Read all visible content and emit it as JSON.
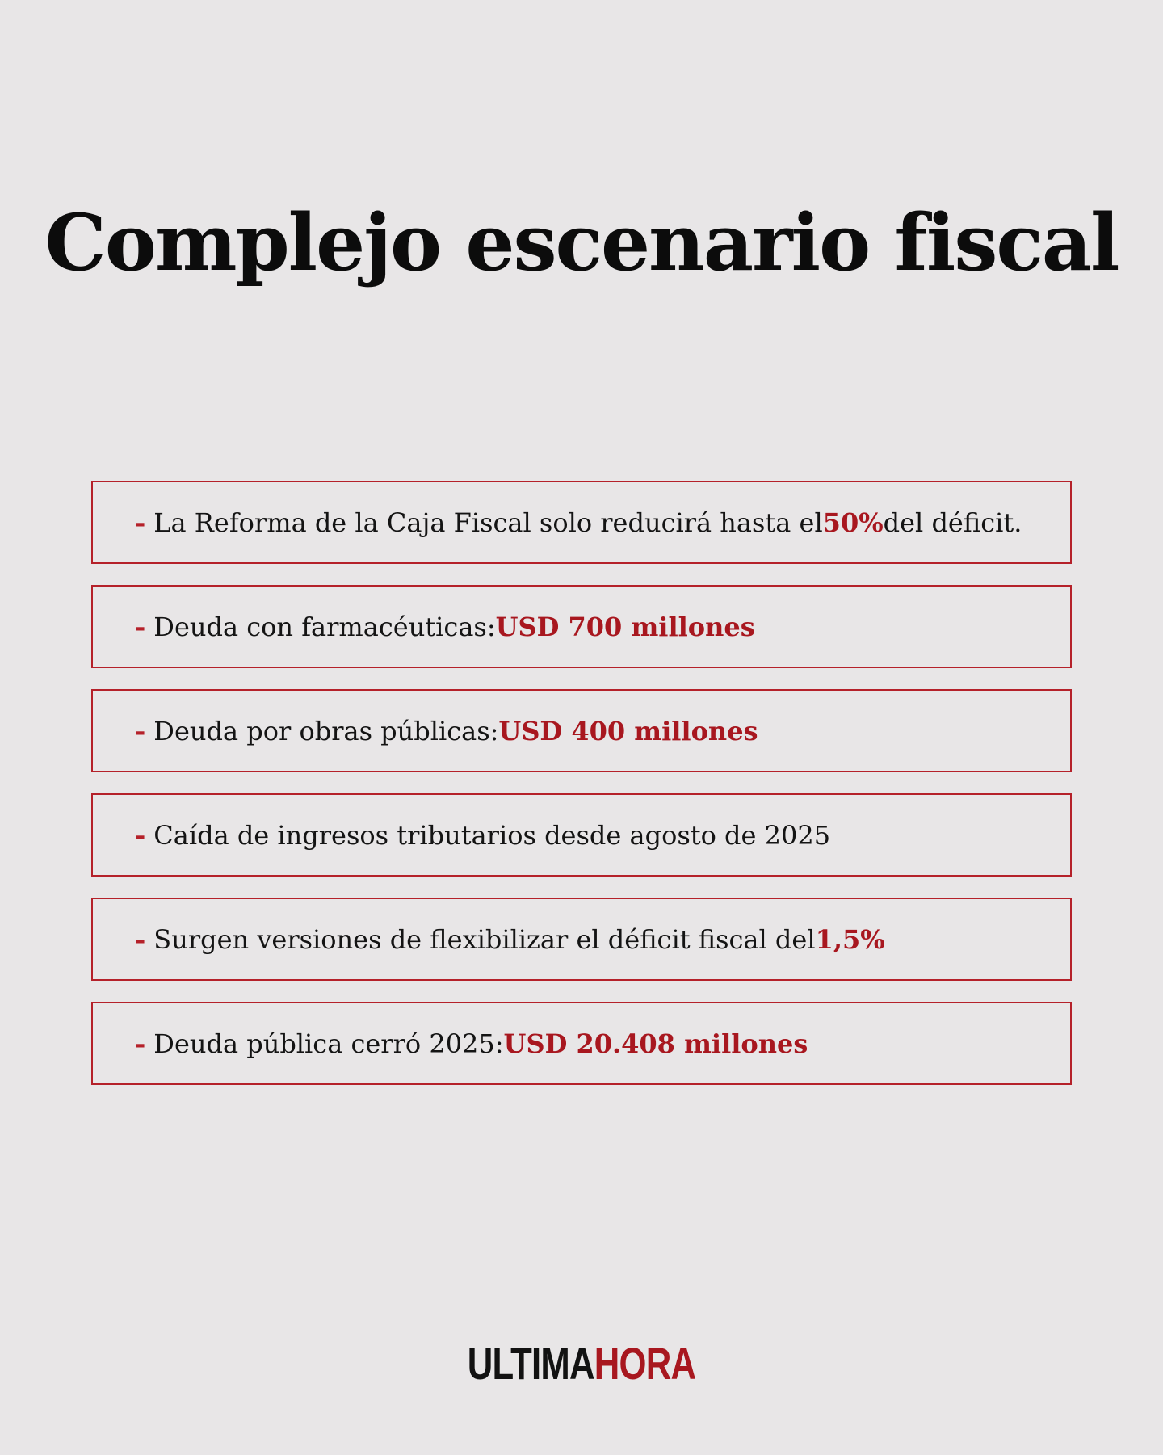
{
  "title": "Complejo escenario fiscal",
  "dash": "-",
  "items": [
    {
      "text": "La Reforma de la Caja Fiscal solo reducirá hasta el ",
      "highlight": "50%",
      "after": " del déficit."
    },
    {
      "text": "Deuda con farmacéuticas: ",
      "highlight": "USD 700 millones",
      "after": ""
    },
    {
      "text": "Deuda por obras públicas: ",
      "highlight": "USD 400 millones",
      "after": ""
    },
    {
      "text": "Caída de ingresos tributarios desde agosto de 2025",
      "highlight": "",
      "after": ""
    },
    {
      "text": "Surgen versiones de flexibilizar el déficit fiscal del ",
      "highlight": "1,5%",
      "after": ""
    },
    {
      "text": "Deuda pública cerró 2025: ",
      "highlight": "USD 20.408 millones",
      "after": ""
    }
  ],
  "logo": {
    "part1": "ULTIMA",
    "part2": "HORA"
  },
  "colors": {
    "accent": "#a8171f",
    "border": "#b5212a",
    "background": "#e8e6e7",
    "text": "#141414"
  }
}
